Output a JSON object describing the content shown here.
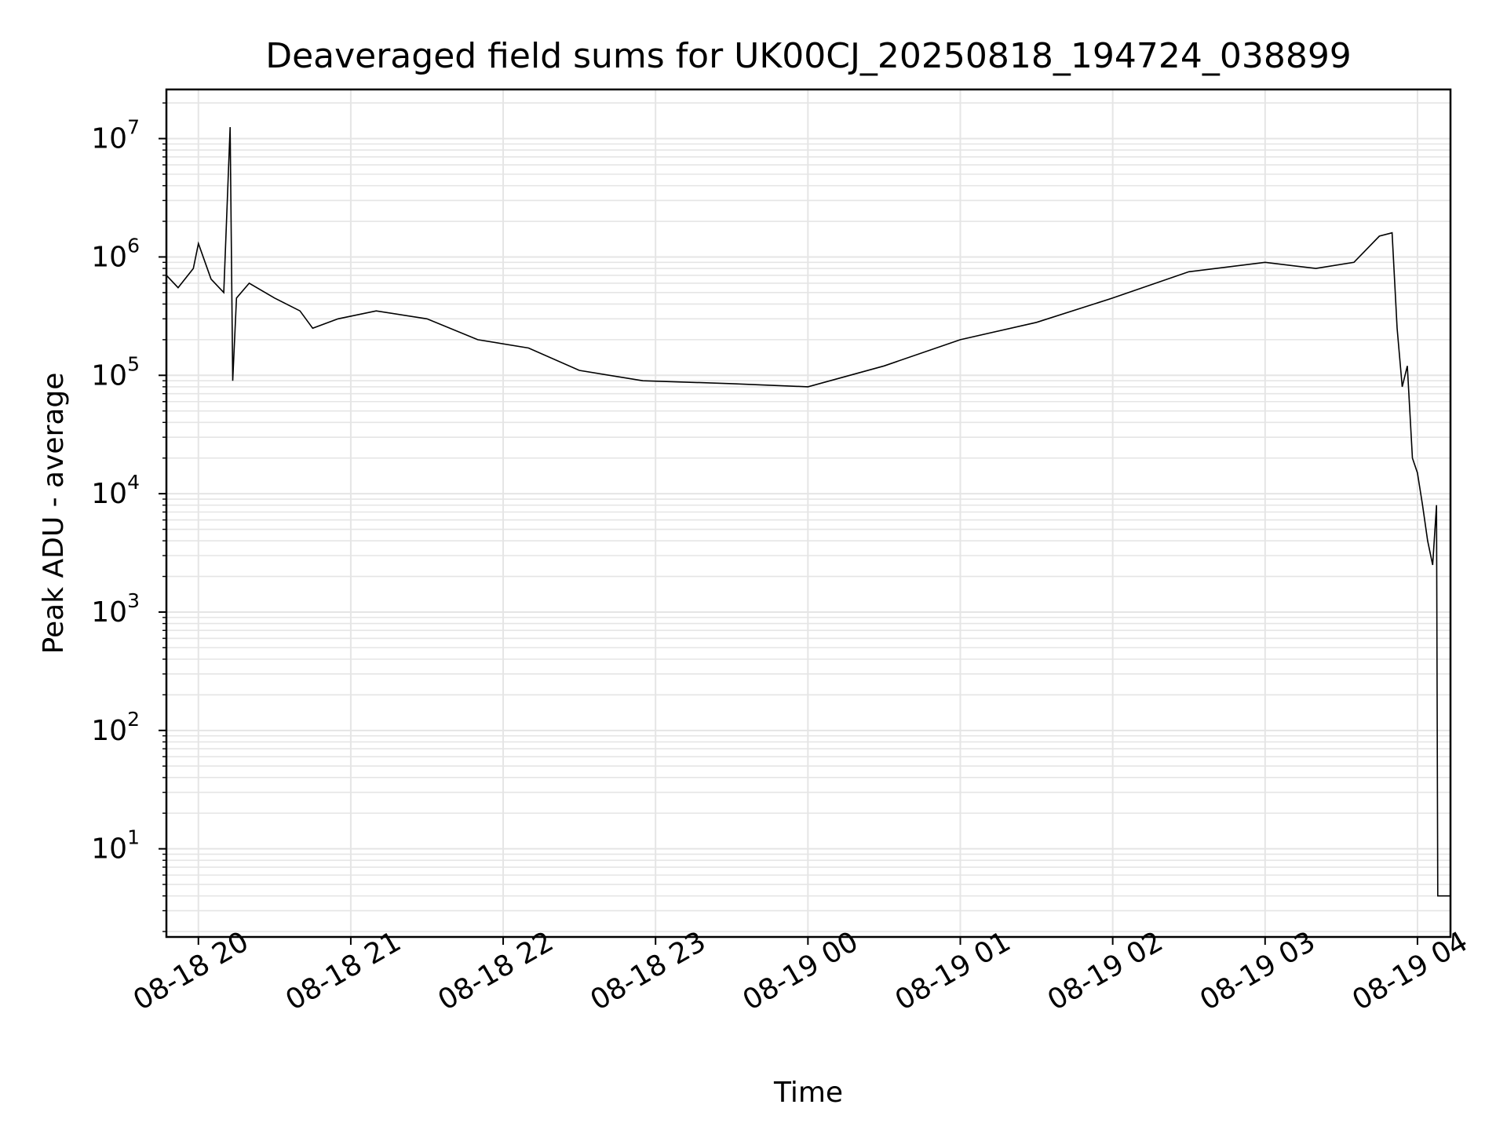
{
  "chart_data": {
    "type": "line",
    "title": "Deaveraged field sums for UK00CJ_20250818_194724_038899",
    "xlabel": "Time",
    "ylabel": "Peak ADU - average",
    "yscale": "log",
    "ylim": [
      1.8,
      26000000.0
    ],
    "xlim": [
      "2025-08-18T19:47:24",
      "2025-08-19T04:13:00"
    ],
    "grid": true,
    "line_color": "#000000",
    "grid_color": "#e5e5e5",
    "x_ticks": [
      "08-18 20",
      "08-18 21",
      "08-18 22",
      "08-18 23",
      "08-19 00",
      "08-19 01",
      "08-19 02",
      "08-19 03",
      "08-19 04"
    ],
    "y_ticks": [
      {
        "value": 10,
        "base": "10",
        "exp": "1"
      },
      {
        "value": 100,
        "base": "10",
        "exp": "2"
      },
      {
        "value": 1000,
        "base": "10",
        "exp": "3"
      },
      {
        "value": 10000,
        "base": "10",
        "exp": "4"
      },
      {
        "value": 100000,
        "base": "10",
        "exp": "5"
      },
      {
        "value": 1000000,
        "base": "10",
        "exp": "6"
      },
      {
        "value": 10000000,
        "base": "10",
        "exp": "7"
      }
    ],
    "series": [
      {
        "x": [
          "2025-08-18T19:47:24",
          "2025-08-18T19:52:00",
          "2025-08-18T19:58:00",
          "2025-08-18T20:00:00",
          "2025-08-18T20:05:00",
          "2025-08-18T20:10:00",
          "2025-08-18T20:12:30",
          "2025-08-18T20:13:30",
          "2025-08-18T20:15:00",
          "2025-08-18T20:20:00",
          "2025-08-18T20:30:00",
          "2025-08-18T20:40:00",
          "2025-08-18T20:45:00",
          "2025-08-18T20:55:00",
          "2025-08-18T21:10:00",
          "2025-08-18T21:30:00",
          "2025-08-18T21:50:00",
          "2025-08-18T22:10:00",
          "2025-08-18T22:30:00",
          "2025-08-18T22:55:00",
          "2025-08-18T23:30:00",
          "2025-08-19T00:00:00",
          "2025-08-19T00:30:00",
          "2025-08-19T01:00:00",
          "2025-08-19T01:30:00",
          "2025-08-19T02:00:00",
          "2025-08-19T02:30:00",
          "2025-08-19T03:00:00",
          "2025-08-19T03:20:00",
          "2025-08-19T03:35:00",
          "2025-08-19T03:45:00",
          "2025-08-19T03:50:00",
          "2025-08-19T03:52:00",
          "2025-08-19T03:54:00",
          "2025-08-19T03:56:00",
          "2025-08-19T03:58:00",
          "2025-08-19T04:00:00",
          "2025-08-19T04:02:00",
          "2025-08-19T04:04:00",
          "2025-08-19T04:06:00",
          "2025-08-19T04:07:30",
          "2025-08-19T04:08:00",
          "2025-08-19T04:13:00"
        ],
        "y": [
          700000,
          550000,
          800000,
          1300000,
          650000,
          500000,
          12500000,
          90000,
          450000,
          600000,
          450000,
          350000,
          250000,
          300000,
          350000,
          300000,
          200000,
          170000,
          110000,
          90000,
          85000,
          80000,
          120000,
          200000,
          280000,
          450000,
          750000,
          900000,
          800000,
          900000,
          1500000,
          1600000,
          250000,
          80000,
          120000,
          20000,
          15000,
          8000,
          4000,
          2500,
          8000,
          4,
          4
        ]
      }
    ]
  }
}
